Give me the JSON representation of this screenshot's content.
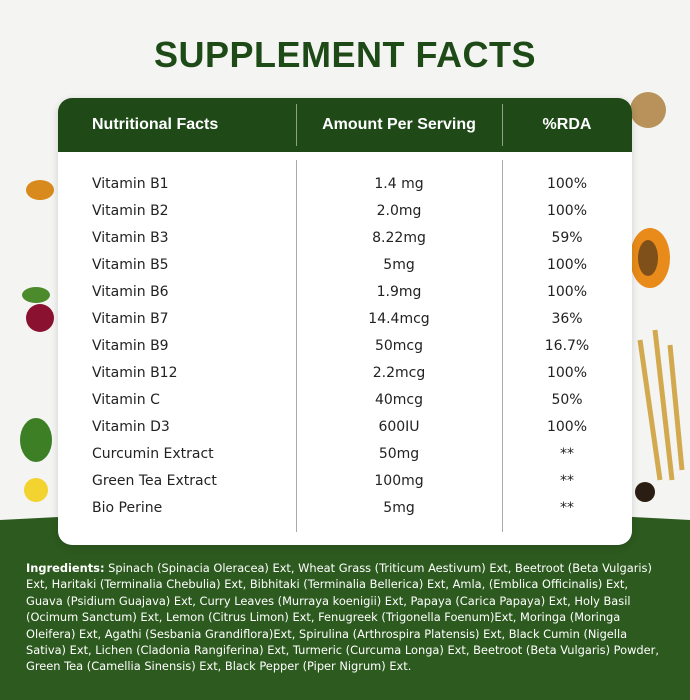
{
  "title": "SUPPLEMENT FACTS",
  "table": {
    "headers": [
      "Nutritional Facts",
      "Amount Per Serving",
      "%RDA"
    ],
    "rows": [
      [
        "Vitamin B1",
        "1.4 mg",
        "100%"
      ],
      [
        "Vitamin B2",
        "2.0mg",
        "100%"
      ],
      [
        "Vitamin B3",
        "8.22mg",
        "59%"
      ],
      [
        "Vitamin B5",
        "5mg",
        "100%"
      ],
      [
        "Vitamin B6",
        "1.9mg",
        "100%"
      ],
      [
        "Vitamin B7",
        "14.4mcg",
        "36%"
      ],
      [
        "Vitamin B9",
        "50mcg",
        "16.7%"
      ],
      [
        "Vitamin B12",
        "2.2mcg",
        "100%"
      ],
      [
        "Vitamin C",
        "40mcg",
        "50%"
      ],
      [
        "Vitamin D3",
        "600IU",
        "100%"
      ],
      [
        "Curcumin Extract",
        "50mg",
        "**"
      ],
      [
        "Green Tea Extract",
        "100mg",
        "**"
      ],
      [
        "Bio Perine",
        "5mg",
        "**"
      ]
    ]
  },
  "ingredients": {
    "label": "Ingredients:",
    "text": "Spinach (Spinacia Oleracea) Ext, Wheat Grass (Triticum Aestivum) Ext, Beetroot (Beta Vulgaris) Ext, Haritaki (Terminalia Chebulia) Ext, Bibhitaki (Terminalia Bellerica) Ext, Amla, (Emblica Officinalis) Ext, Guava (Psidium Guajava) Ext, Curry Leaves (Murraya koenigii) Ext, Papaya (Carica Papaya) Ext, Holy Basil (Ocimum Sanctum) Ext, Lemon (Citrus Limon) Ext, Fenugreek (Trigonella Foenum)Ext, Moringa (Moringa Oleifera) Ext, Agathi (Sesbania Grandiflora)Ext, Spirulina (Arthrospira Platensis) Ext, Black Cumin (Nigella Sativa) Ext, Lichen (Cladonia Rangiferina) Ext, Turmeric (Curcuma Longa) Ext, Beetroot (Beta Vulgaris) Powder, Green Tea (Camellia Sinensis) Ext, Black Pepper (Piper Nigrum) Ext."
  }
}
